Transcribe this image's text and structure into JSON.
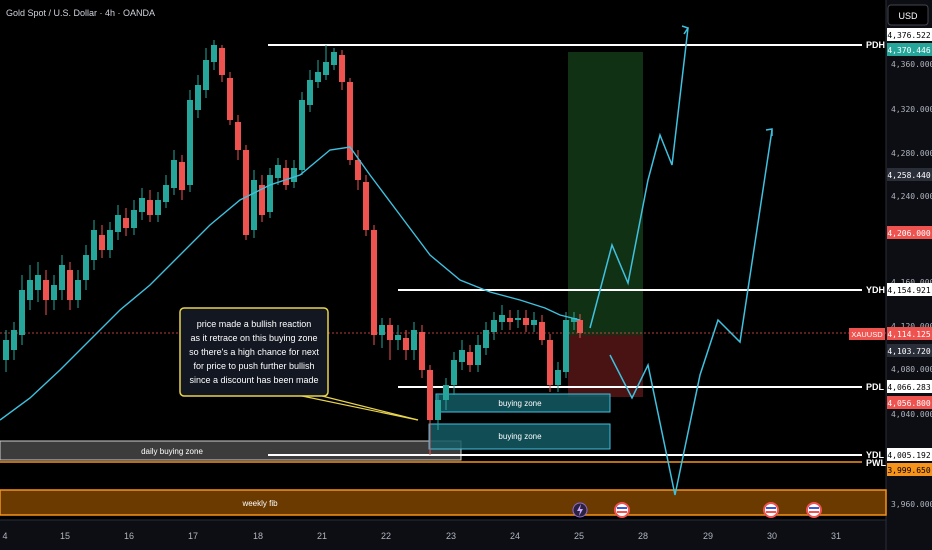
{
  "header": {
    "title": "Gold Spot / U.S. Dollar · 4h · OANDA"
  },
  "currency_button": "USD",
  "price_axis": {
    "ticks": [
      "4,360.000",
      "4,320.000",
      "4,280.000",
      "4,240.000",
      "4,160.000",
      "4,120.000",
      "4,080.000",
      "4,040.000",
      "3,960.000"
    ],
    "tick_values": [
      4360,
      4320,
      4280,
      4240,
      4160,
      4120,
      4080,
      4040,
      3960
    ],
    "labels": [
      {
        "text": "4,376.522",
        "value": 4376.522,
        "bg": "#ffffff",
        "fg": "#000000"
      },
      {
        "text": "4,370.446",
        "value": 4370.446,
        "bg": "#26a69a",
        "fg": "#ffffff"
      },
      {
        "text": "4,258.440",
        "value": 4258.44,
        "bg": "#2a2e39",
        "fg": "#ffffff"
      },
      {
        "text": "4,206.000",
        "value": 4206.0,
        "bg": "#ef5350",
        "fg": "#ffffff"
      },
      {
        "text": "4,154.921",
        "value": 4154.921,
        "bg": "#ffffff",
        "fg": "#000000"
      },
      {
        "text": "4,114.125",
        "value": 4114.125,
        "bg": "#ef5350",
        "fg": "#ffffff"
      },
      {
        "text": "4,103.720",
        "value": 4103.72,
        "bg": "#2a2e39",
        "fg": "#ffffff"
      },
      {
        "text": "4,066.283",
        "value": 4066.283,
        "bg": "#ffffff",
        "fg": "#000000"
      },
      {
        "text": "4,056.800",
        "value": 4056.8,
        "bg": "#ef5350",
        "fg": "#ffffff"
      },
      {
        "text": "4,005.192",
        "value": 4005.192,
        "bg": "#ffffff",
        "fg": "#000000"
      },
      {
        "text": "3,999.650",
        "value": 3999.65,
        "bg": "#f7931a",
        "fg": "#000000"
      }
    ],
    "symbol_tag": "XAUUSD"
  },
  "time_axis": {
    "labels": [
      "4",
      "15",
      "16",
      "17",
      "18",
      "21",
      "22",
      "23",
      "24",
      "25",
      "28",
      "29",
      "30",
      "31"
    ],
    "day_index": [
      0,
      1,
      2,
      3,
      4,
      5,
      6,
      7,
      8,
      9,
      10,
      11,
      12,
      13
    ]
  },
  "levels": [
    {
      "label": "PDH",
      "value": 4376.522
    },
    {
      "label": "YDH",
      "value": 4154.921
    },
    {
      "label": "PDL",
      "value": 4066.283
    },
    {
      "label": "YDL",
      "value": 4005.192
    },
    {
      "label": "PWL",
      "value": 3999.65
    }
  ],
  "zones": {
    "buying_zone_upper": "buying zone",
    "buying_zone_lower": "buying zone",
    "daily_buying_zone": "daily buying zone",
    "weekly_fib": "weekly fib"
  },
  "annotation": {
    "lines": [
      "price made a bullish reaction",
      "as it retrace on this buying zone",
      "so there's a high chance for next",
      "for price to push further bullish",
      "since a discount has been made"
    ]
  },
  "colors": {
    "bull": "#26a69a",
    "bear": "#ef5350",
    "ma": "#3fc1e0",
    "weekly_fib": "#f7931a",
    "projection": "#3fc1e0"
  },
  "bottom_icons": [
    "lightning-icon",
    "us-flag-icon",
    "us-flag-icon",
    "us-flag-icon"
  ]
}
